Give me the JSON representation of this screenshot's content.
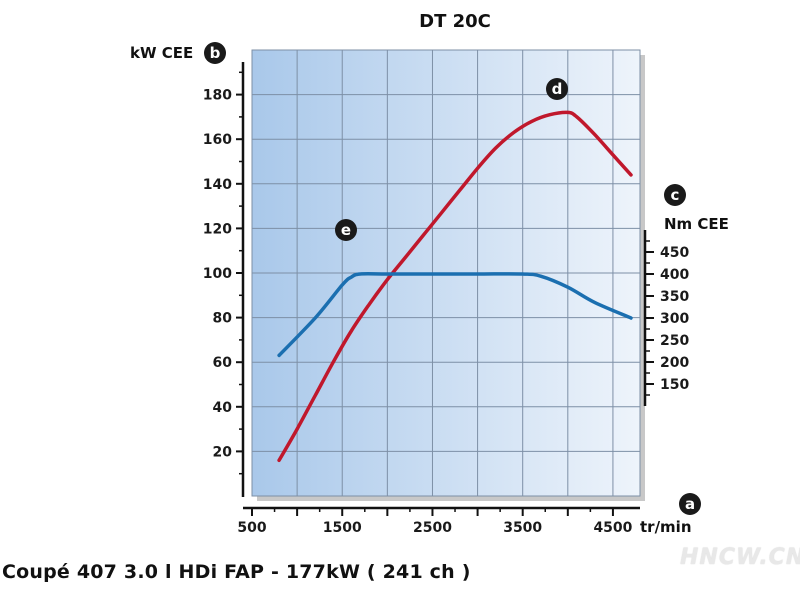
{
  "chart_data": {
    "type": "line",
    "title": "DT 20C",
    "caption": "Coupé 407  3.0 l HDi FAP - 177kW ( 241 ch )",
    "x_axis": {
      "marker": "a",
      "unit": "tr/min",
      "range": [
        500,
        4800
      ],
      "ticks": [
        500,
        1500,
        2500,
        3500,
        4500
      ],
      "minor_step": 500
    },
    "y_left": {
      "marker": "b",
      "label": "kW CEE",
      "range": [
        0,
        200
      ],
      "ticks": [
        20,
        40,
        60,
        80,
        100,
        120,
        140,
        160,
        180
      ]
    },
    "y_right": {
      "marker": "c",
      "label": "Nm CEE",
      "range": [
        100,
        475
      ],
      "ticks": [
        150,
        200,
        250,
        300,
        350,
        400,
        450
      ]
    },
    "series": [
      {
        "name": "",
        "marker": "d",
        "axis": "left",
        "color": "#c0182c",
        "x": [
          800,
          1000,
          1200,
          1400,
          1600,
          1800,
          2000,
          2200,
          2400,
          2600,
          2800,
          3000,
          3200,
          3400,
          3600,
          3800,
          4000,
          4100,
          4300,
          4500,
          4700
        ],
        "y": [
          16,
          30,
          45,
          60,
          74,
          86,
          97,
          107,
          117,
          127,
          137,
          147,
          156,
          163,
          168,
          171,
          172,
          170,
          162,
          153,
          144
        ]
      },
      {
        "name": "",
        "marker": "e",
        "axis": "right",
        "color": "#1b6fb0",
        "x": [
          800,
          1200,
          1500,
          1600,
          1700,
          2000,
          2500,
          3000,
          3500,
          3700,
          4000,
          4300,
          4700
        ],
        "y": [
          215,
          300,
          375,
          393,
          400,
          400,
          400,
          400,
          400,
          395,
          370,
          335,
          300
        ]
      }
    ]
  }
}
